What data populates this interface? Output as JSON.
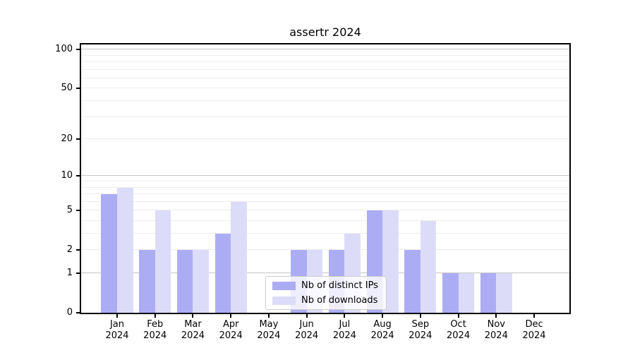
{
  "title": "assertr 2024",
  "chart_data": {
    "type": "bar",
    "title": "assertr 2024",
    "categories": [
      "Jan",
      "Feb",
      "Mar",
      "Apr",
      "May",
      "Jun",
      "Jul",
      "Aug",
      "Sep",
      "Oct",
      "Nov",
      "Dec"
    ],
    "category_year": "2024",
    "series": [
      {
        "name": "Nb of distinct IPs",
        "color": "#acacf5",
        "values": [
          7,
          2,
          2,
          3,
          0,
          2,
          2,
          5,
          2,
          1,
          1,
          0
        ]
      },
      {
        "name": "Nb of downloads",
        "color": "#dcdcf9",
        "values": [
          8,
          5,
          2,
          6,
          0,
          2,
          3,
          5,
          4,
          1,
          1,
          0
        ]
      }
    ],
    "yscale": "log10(1+v)",
    "ylim": [
      0,
      112
    ],
    "yticks": [
      0,
      1,
      2,
      5,
      10,
      20,
      50,
      100
    ],
    "major_gridlines": [
      1,
      10,
      100
    ],
    "minor_gridlines": [
      2,
      3,
      4,
      5,
      6,
      7,
      8,
      9,
      20,
      30,
      40,
      50,
      60,
      70,
      80,
      90
    ],
    "grid": true,
    "legend_position": "lower center"
  },
  "legend": {
    "items": [
      {
        "label": "Nb of distinct IPs"
      },
      {
        "label": "Nb of downloads"
      }
    ]
  },
  "colors": {
    "bar_distinct_ips": "#acacf5",
    "bar_downloads": "#dcdcf9",
    "major_grid": "#c6c6c6",
    "minor_grid": "#ededed",
    "spine": "#000000",
    "text": "#000000",
    "legend_border": "#cccccc"
  }
}
